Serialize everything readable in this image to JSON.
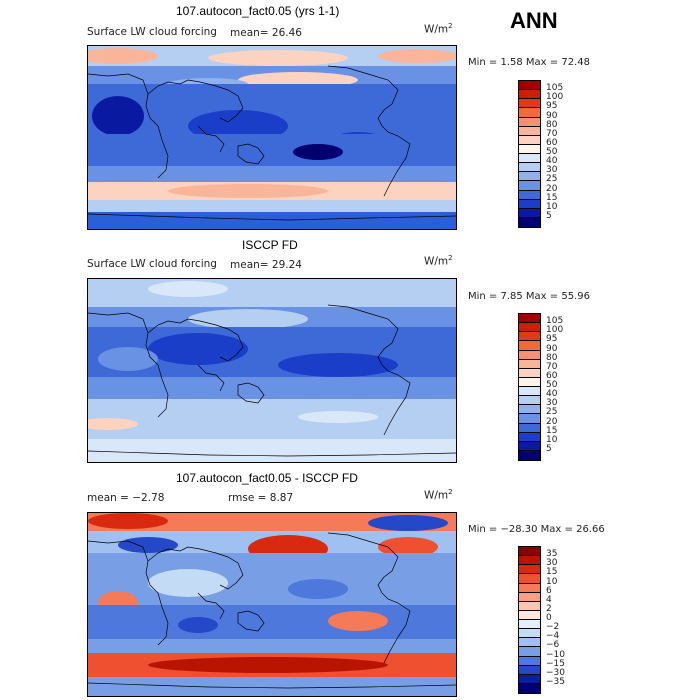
{
  "season": "ANN",
  "units": "W/m",
  "units_sup": "2",
  "panels": [
    {
      "title": "107.autocon_fact0.05 (yrs 1-1)",
      "variable": "Surface LW cloud forcing",
      "mean_text": "mean=  26.46",
      "minmax_text": "Min =    1.58 Max =   72.48",
      "levels": [
        "105",
        "100",
        "95",
        "90",
        "80",
        "70",
        "60",
        "50",
        "40",
        "30",
        "25",
        "20",
        "15",
        "10",
        "5"
      ],
      "colors": [
        "#a00000",
        "#c82000",
        "#e03a1a",
        "#f06a3a",
        "#f59070",
        "#f8b59a",
        "#fbd3c0",
        "#fff4ec",
        "#d8e8f8",
        "#b4cff2",
        "#8fb2ec",
        "#6a92e4",
        "#3e6ad8",
        "#1a3ec8",
        "#0a1aa0",
        "#000070"
      ]
    },
    {
      "title": "ISCCP FD",
      "variable": "Surface LW cloud forcing",
      "mean_text": "mean=  29.24",
      "minmax_text": "Min =    7.85 Max =   55.96",
      "levels": [
        "105",
        "100",
        "95",
        "90",
        "80",
        "70",
        "60",
        "50",
        "40",
        "30",
        "25",
        "20",
        "15",
        "10",
        "5"
      ],
      "colors": [
        "#a00000",
        "#c82000",
        "#e03a1a",
        "#f06a3a",
        "#f59070",
        "#f8b59a",
        "#fbd3c0",
        "#fff4ec",
        "#d8e8f8",
        "#b4cff2",
        "#8fb2ec",
        "#6a92e4",
        "#3e6ad8",
        "#1a3ec8",
        "#0a1aa0",
        "#000070"
      ]
    },
    {
      "title": "107.autocon_fact0.05 - ISCCP FD",
      "mean_text": "mean =  −2.78",
      "rmse_text": "rmse =   8.87",
      "minmax_text": "Min = −28.30 Max =   26.66",
      "levels": [
        "35",
        "30",
        "15",
        "10",
        "6",
        "4",
        "2",
        "0",
        "−2",
        "−4",
        "−6",
        "−10",
        "−15",
        "−30",
        "−35"
      ],
      "colors": [
        "#8a0000",
        "#b81400",
        "#d82a10",
        "#ee5030",
        "#f47a58",
        "#f8a080",
        "#fbc6b0",
        "#fde6da",
        "#e2eefa",
        "#c4dbf6",
        "#9fc0f0",
        "#789fe6",
        "#4e78dc",
        "#2448c8",
        "#0c1ea0",
        "#000070"
      ]
    }
  ]
}
